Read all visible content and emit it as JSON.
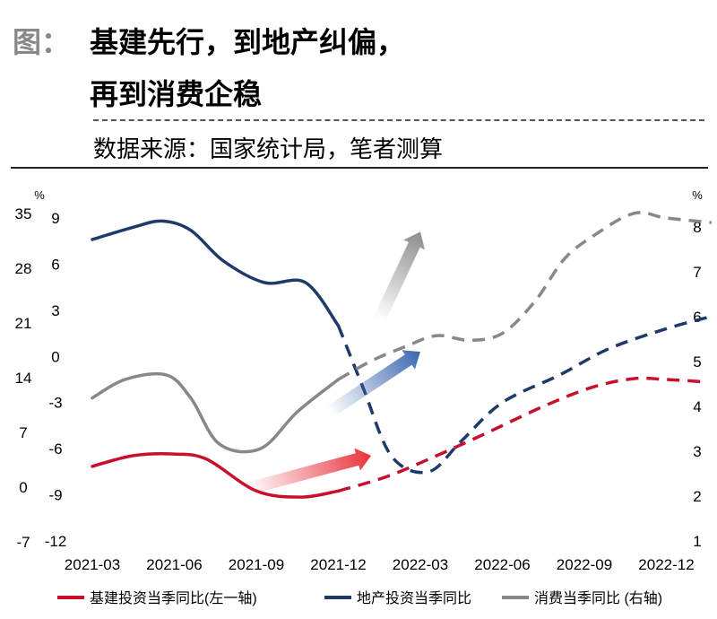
{
  "header": {
    "label": "图：",
    "title_line1": "基建先行，到地产纠偏，",
    "title_line2": "再到消费企稳",
    "source": "数据来源：国家统计局，笔者测算"
  },
  "colors": {
    "infra": "#c8102e",
    "property": "#1f3a68",
    "consumption": "#888888",
    "arrow_red": "#e8323c",
    "arrow_blue": "#3a66b0",
    "arrow_grey": "#8c8c8c"
  },
  "chart_data": {
    "type": "line",
    "title": "基建先行，到地产纠偏，再到消费企稳",
    "categories": [
      "2021-03",
      "2021-06",
      "2021-09",
      "2021-12",
      "2022-03",
      "2022-06",
      "2022-09",
      "2022-12"
    ],
    "axes": {
      "left_outer": {
        "ticks": [
          "35",
          "28",
          "21",
          "14",
          "7",
          "0",
          "-7"
        ],
        "unit": "%",
        "range": [
          -7,
          35
        ]
      },
      "left_inner": {
        "ticks": [
          "9",
          "6",
          "3",
          "0",
          "-3",
          "-6",
          "-9",
          "-12"
        ],
        "unit": "",
        "range": [
          -12,
          9
        ]
      },
      "right": {
        "ticks": [
          "8",
          "7",
          "6",
          "5",
          "4",
          "3",
          "2",
          "1"
        ],
        "unit": "%",
        "range": [
          1,
          8
        ]
      }
    },
    "series": [
      {
        "key": "infra",
        "name": "基建投资当季同比(左一轴)",
        "axis": "left_outer",
        "actual_x": [
          0,
          0.5,
          1.0,
          1.4,
          2.0,
          2.55,
          3.0
        ],
        "actual_y": [
          2.7,
          4.1,
          4.3,
          3.6,
          -0.5,
          -1.3,
          -0.5
        ],
        "forecast_x": [
          3.0,
          3.6,
          4.2,
          4.8,
          5.5,
          6.1,
          6.6,
          7.0,
          7.45
        ],
        "forecast_y": [
          -0.5,
          1.4,
          4.1,
          7.0,
          10.5,
          13.0,
          14.1,
          14.0,
          13.7
        ]
      },
      {
        "key": "property",
        "name": "地产投资当季同比",
        "axis": "left_inner",
        "actual_x": [
          0,
          0.5,
          0.85,
          1.2,
          1.6,
          2.1,
          2.6,
          3.0
        ],
        "actual_y": [
          7.6,
          8.4,
          8.8,
          8.2,
          6.2,
          4.8,
          4.8,
          2.0
        ],
        "forecast_x": [
          3.0,
          3.3,
          3.65,
          4.1,
          4.5,
          5.0,
          5.7,
          6.3,
          7.0,
          7.55
        ],
        "forecast_y": [
          2.0,
          -2.0,
          -6.5,
          -7.5,
          -5.5,
          -3.0,
          -1.2,
          0.5,
          1.8,
          2.6
        ]
      },
      {
        "key": "consumption",
        "name": "消费当季同比 (右轴)",
        "axis": "right",
        "actual_x": [
          0,
          0.4,
          0.9,
          1.2,
          1.55,
          2.05,
          2.5,
          3.0
        ],
        "actual_y": [
          4.1,
          4.5,
          4.6,
          4.1,
          3.1,
          3.0,
          3.8,
          4.5
        ],
        "forecast_x": [
          3.0,
          3.4,
          3.8,
          4.2,
          4.6,
          5.0,
          5.4,
          5.75,
          6.1,
          6.6,
          7.0,
          7.55
        ],
        "forecast_y": [
          4.5,
          4.9,
          5.2,
          5.45,
          5.35,
          5.5,
          6.2,
          7.1,
          7.6,
          8.1,
          8.0,
          7.9
        ]
      }
    ],
    "arrows": [
      {
        "name": "infra-trend-arrow",
        "color_key": "arrow_red",
        "from": [
          1.9,
          -0.2
        ],
        "to": [
          3.4,
          4.1
        ],
        "axis": "left_outer"
      },
      {
        "name": "property-trend-arrow",
        "color_key": "arrow_blue",
        "from": [
          2.9,
          -3.6
        ],
        "to": [
          4.0,
          0.3
        ],
        "axis": "left_inner"
      },
      {
        "name": "consumption-trend-arrow",
        "color_key": "arrow_grey",
        "from": [
          3.5,
          5.8
        ],
        "to": [
          4.0,
          7.7
        ],
        "axis": "right"
      }
    ],
    "legend": [
      {
        "key": "infra",
        "label": "基建投资当季同比(左一轴)"
      },
      {
        "key": "property",
        "label": "地产投资当季同比"
      },
      {
        "key": "consumption",
        "label": "消费当季同比 (右轴)"
      }
    ],
    "legend_position": "bottom"
  }
}
